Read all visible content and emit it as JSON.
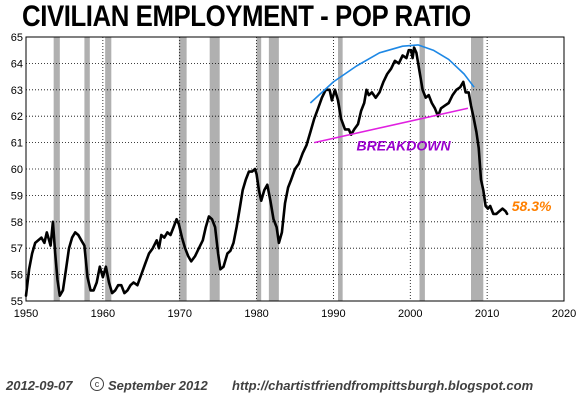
{
  "title": "CIVILIAN EMPLOYMENT - POP RATIO",
  "footer": {
    "date": "2012-09-07",
    "copyright": "September 2012",
    "url": "http://chartistfriendfrompittsburgh.blogspot.com"
  },
  "chart_data": {
    "type": "line",
    "title": "CIVILIAN EMPLOYMENT - POP RATIO",
    "xlim": [
      1950,
      2020
    ],
    "ylim": [
      55,
      65
    ],
    "x_ticks": [
      1950,
      1960,
      1970,
      1980,
      1990,
      2000,
      2010,
      2020
    ],
    "y_ticks": [
      55,
      56,
      57,
      58,
      59,
      60,
      61,
      62,
      63,
      64,
      65
    ],
    "grid": true,
    "recession_bands": [
      [
        1953.6,
        1954.4
      ],
      [
        1957.6,
        1958.3
      ],
      [
        1960.3,
        1961.1
      ],
      [
        1969.9,
        1970.9
      ],
      [
        1973.9,
        1975.2
      ],
      [
        1980.0,
        1980.6
      ],
      [
        1981.6,
        1982.9
      ],
      [
        1990.6,
        1991.2
      ],
      [
        2001.2,
        2001.9
      ],
      [
        2007.9,
        2009.5
      ]
    ],
    "recession_color": "#b0b0b0",
    "series": [
      {
        "color": "#000000",
        "points": [
          [
            1950.0,
            55.2
          ],
          [
            1950.4,
            56.2
          ],
          [
            1950.8,
            56.8
          ],
          [
            1951.2,
            57.2
          ],
          [
            1951.6,
            57.3
          ],
          [
            1952.0,
            57.4
          ],
          [
            1952.4,
            57.2
          ],
          [
            1952.7,
            57.6
          ],
          [
            1953.0,
            57.3
          ],
          [
            1953.2,
            57.1
          ],
          [
            1953.5,
            58.0
          ],
          [
            1953.8,
            56.8
          ],
          [
            1954.1,
            55.8
          ],
          [
            1954.4,
            55.2
          ],
          [
            1954.8,
            55.4
          ],
          [
            1955.2,
            56.2
          ],
          [
            1955.6,
            57.0
          ],
          [
            1956.0,
            57.4
          ],
          [
            1956.4,
            57.6
          ],
          [
            1956.8,
            57.5
          ],
          [
            1957.2,
            57.3
          ],
          [
            1957.6,
            57.1
          ],
          [
            1958.0,
            55.9
          ],
          [
            1958.4,
            55.4
          ],
          [
            1958.8,
            55.4
          ],
          [
            1959.2,
            55.7
          ],
          [
            1959.6,
            56.3
          ],
          [
            1960.0,
            55.9
          ],
          [
            1960.4,
            56.3
          ],
          [
            1960.8,
            55.7
          ],
          [
            1961.2,
            55.3
          ],
          [
            1961.6,
            55.4
          ],
          [
            1962.0,
            55.6
          ],
          [
            1962.4,
            55.6
          ],
          [
            1962.8,
            55.3
          ],
          [
            1963.2,
            55.4
          ],
          [
            1963.6,
            55.6
          ],
          [
            1964.0,
            55.7
          ],
          [
            1964.5,
            55.6
          ],
          [
            1965.0,
            56.0
          ],
          [
            1965.5,
            56.4
          ],
          [
            1966.0,
            56.8
          ],
          [
            1966.5,
            57.0
          ],
          [
            1967.0,
            57.3
          ],
          [
            1967.3,
            57.0
          ],
          [
            1967.6,
            57.5
          ],
          [
            1968.0,
            57.4
          ],
          [
            1968.4,
            57.6
          ],
          [
            1968.8,
            57.5
          ],
          [
            1969.2,
            57.8
          ],
          [
            1969.6,
            58.1
          ],
          [
            1969.9,
            57.9
          ],
          [
            1970.3,
            57.4
          ],
          [
            1970.7,
            57.0
          ],
          [
            1971.1,
            56.7
          ],
          [
            1971.5,
            56.5
          ],
          [
            1972.0,
            56.7
          ],
          [
            1972.5,
            57.0
          ],
          [
            1973.0,
            57.3
          ],
          [
            1973.4,
            57.8
          ],
          [
            1973.8,
            58.2
          ],
          [
            1974.2,
            58.1
          ],
          [
            1974.6,
            57.8
          ],
          [
            1975.0,
            56.8
          ],
          [
            1975.3,
            56.2
          ],
          [
            1975.7,
            56.3
          ],
          [
            1976.2,
            56.8
          ],
          [
            1976.6,
            56.9
          ],
          [
            1977.0,
            57.2
          ],
          [
            1977.4,
            57.8
          ],
          [
            1977.8,
            58.5
          ],
          [
            1978.2,
            59.2
          ],
          [
            1978.6,
            59.6
          ],
          [
            1979.0,
            59.9
          ],
          [
            1979.4,
            59.9
          ],
          [
            1979.8,
            60.0
          ],
          [
            1980.0,
            59.8
          ],
          [
            1980.3,
            59.2
          ],
          [
            1980.6,
            58.8
          ],
          [
            1981.0,
            59.2
          ],
          [
            1981.4,
            59.4
          ],
          [
            1981.8,
            58.8
          ],
          [
            1982.2,
            58.1
          ],
          [
            1982.6,
            57.8
          ],
          [
            1982.9,
            57.2
          ],
          [
            1983.3,
            57.6
          ],
          [
            1983.7,
            58.7
          ],
          [
            1984.1,
            59.3
          ],
          [
            1984.5,
            59.6
          ],
          [
            1985.0,
            60.0
          ],
          [
            1985.5,
            60.2
          ],
          [
            1986.0,
            60.6
          ],
          [
            1986.5,
            60.9
          ],
          [
            1987.0,
            61.4
          ],
          [
            1987.5,
            61.9
          ],
          [
            1988.0,
            62.3
          ],
          [
            1988.5,
            62.7
          ],
          [
            1989.0,
            63.0
          ],
          [
            1989.5,
            63.0
          ],
          [
            1989.8,
            62.6
          ],
          [
            1990.2,
            63.0
          ],
          [
            1990.6,
            62.6
          ],
          [
            1991.0,
            61.9
          ],
          [
            1991.5,
            61.5
          ],
          [
            1992.0,
            61.5
          ],
          [
            1992.3,
            61.3
          ],
          [
            1992.7,
            61.5
          ],
          [
            1993.2,
            61.7
          ],
          [
            1993.6,
            62.2
          ],
          [
            1994.0,
            62.5
          ],
          [
            1994.3,
            63.0
          ],
          [
            1994.6,
            62.8
          ],
          [
            1995.0,
            62.9
          ],
          [
            1995.5,
            62.7
          ],
          [
            1996.0,
            62.9
          ],
          [
            1996.5,
            63.3
          ],
          [
            1997.0,
            63.6
          ],
          [
            1997.5,
            63.8
          ],
          [
            1998.0,
            64.1
          ],
          [
            1998.5,
            64.0
          ],
          [
            1999.0,
            64.3
          ],
          [
            1999.5,
            64.2
          ],
          [
            1999.8,
            64.5
          ],
          [
            2000.1,
            64.5
          ],
          [
            2000.3,
            64.2
          ],
          [
            2000.5,
            64.6
          ],
          [
            2000.8,
            64.4
          ],
          [
            2001.2,
            63.7
          ],
          [
            2001.6,
            63.0
          ],
          [
            2002.0,
            62.7
          ],
          [
            2002.4,
            62.8
          ],
          [
            2002.8,
            62.5
          ],
          [
            2003.2,
            62.3
          ],
          [
            2003.6,
            62.0
          ],
          [
            2004.0,
            62.3
          ],
          [
            2004.5,
            62.4
          ],
          [
            2005.0,
            62.5
          ],
          [
            2005.5,
            62.8
          ],
          [
            2006.0,
            63.0
          ],
          [
            2006.5,
            63.1
          ],
          [
            2006.9,
            63.3
          ],
          [
            2007.2,
            62.9
          ],
          [
            2007.6,
            62.9
          ],
          [
            2007.9,
            62.4
          ],
          [
            2008.2,
            62.0
          ],
          [
            2008.6,
            61.4
          ],
          [
            2008.9,
            60.8
          ],
          [
            2009.2,
            59.6
          ],
          [
            2009.5,
            59.2
          ],
          [
            2009.8,
            58.6
          ],
          [
            2010.1,
            58.5
          ],
          [
            2010.4,
            58.6
          ],
          [
            2010.8,
            58.3
          ],
          [
            2011.2,
            58.3
          ],
          [
            2011.6,
            58.4
          ],
          [
            2012.0,
            58.5
          ],
          [
            2012.4,
            58.4
          ],
          [
            2012.6,
            58.3
          ]
        ]
      }
    ],
    "annotations": {
      "peak_arc": {
        "color": "#1e88e5",
        "points": [
          [
            1987.0,
            62.5
          ],
          [
            1990.0,
            63.3
          ],
          [
            1993.0,
            63.9
          ],
          [
            1996.0,
            64.4
          ],
          [
            1999.0,
            64.65
          ],
          [
            2001.0,
            64.7
          ],
          [
            2003.0,
            64.5
          ],
          [
            2005.0,
            64.15
          ],
          [
            2007.0,
            63.6
          ],
          [
            2008.3,
            63.1
          ]
        ]
      },
      "trend_line": {
        "color": "#e020e0",
        "points": [
          [
            1987.5,
            61.0
          ],
          [
            2007.5,
            62.3
          ]
        ]
      },
      "breakdown_label": {
        "text": "BREAKDOWN",
        "x": 1993.0,
        "y": 60.7,
        "color": "#9900cc"
      },
      "last_value_label": {
        "text": "58.3%",
        "x": 2013.2,
        "y": 58.4,
        "color": "#ff8000"
      }
    }
  }
}
